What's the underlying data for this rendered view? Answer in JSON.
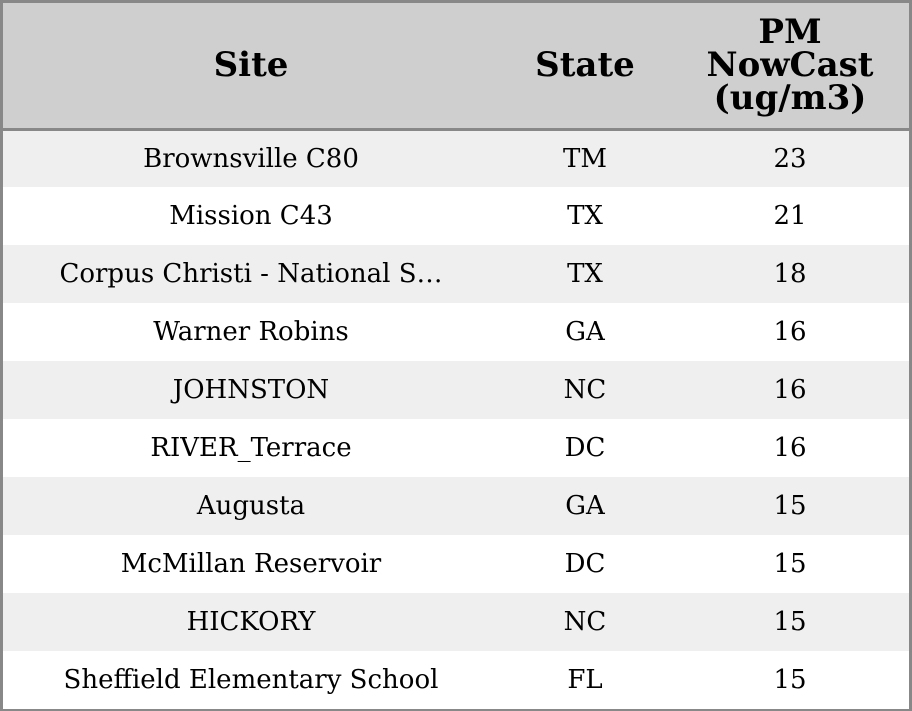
{
  "chart_data": {
    "type": "table",
    "columns": [
      "Site",
      "State",
      "PM NowCast (ug/m3)"
    ],
    "header_lines": {
      "site": [
        "Site"
      ],
      "state": [
        "State"
      ],
      "pm": [
        "PM",
        "NowCast",
        "(ug/m3)"
      ]
    },
    "rows": [
      {
        "site": "Brownsville C80",
        "state": "TM",
        "pm": "23"
      },
      {
        "site": "Mission C43",
        "state": "TX",
        "pm": "21"
      },
      {
        "site": "Corpus Christi - National S…",
        "state": "TX",
        "pm": "18"
      },
      {
        "site": "Warner Robins",
        "state": "GA",
        "pm": "16"
      },
      {
        "site": "JOHNSTON",
        "state": "NC",
        "pm": "16"
      },
      {
        "site": "RIVER_Terrace",
        "state": "DC",
        "pm": "16"
      },
      {
        "site": "Augusta",
        "state": "GA",
        "pm": "15"
      },
      {
        "site": "McMillan Reservoir",
        "state": "DC",
        "pm": "15"
      },
      {
        "site": "HICKORY",
        "state": "NC",
        "pm": "15"
      },
      {
        "site": "Sheffield Elementary School",
        "state": "FL",
        "pm": "15"
      }
    ],
    "colors": {
      "header_bg": "#cfcfcf",
      "row_odd_bg": "#efefef",
      "row_even_bg": "#ffffff",
      "border": "#888888"
    }
  }
}
